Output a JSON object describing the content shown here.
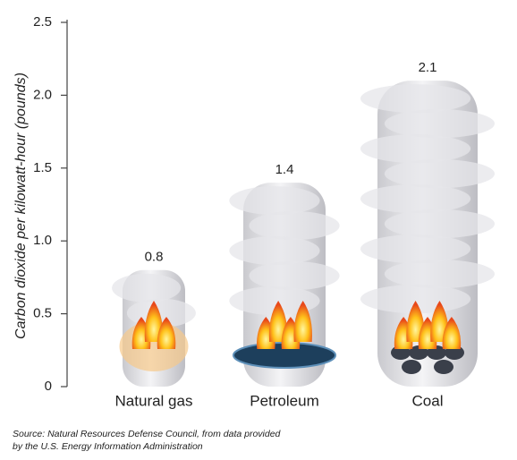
{
  "chart_data": {
    "type": "bar",
    "y_label": "Carbon dioxide per kilowatt-hour (pounds)",
    "categories": [
      "Natural gas",
      "Petroleum",
      "Coal"
    ],
    "values": [
      0.8,
      1.4,
      2.1
    ],
    "color": "#d9d9dc",
    "ylim": [
      0,
      2.5
    ],
    "yticks": [
      0,
      0.5,
      {
        "value": 1,
        "label": "1.0"
      },
      1.5,
      {
        "value": 2,
        "label": "2.0"
      },
      2.5
    ],
    "source": [
      "Source: Natural Resources Defense Council, from data provided",
      "by the U.S. Energy Information Administration"
    ]
  }
}
